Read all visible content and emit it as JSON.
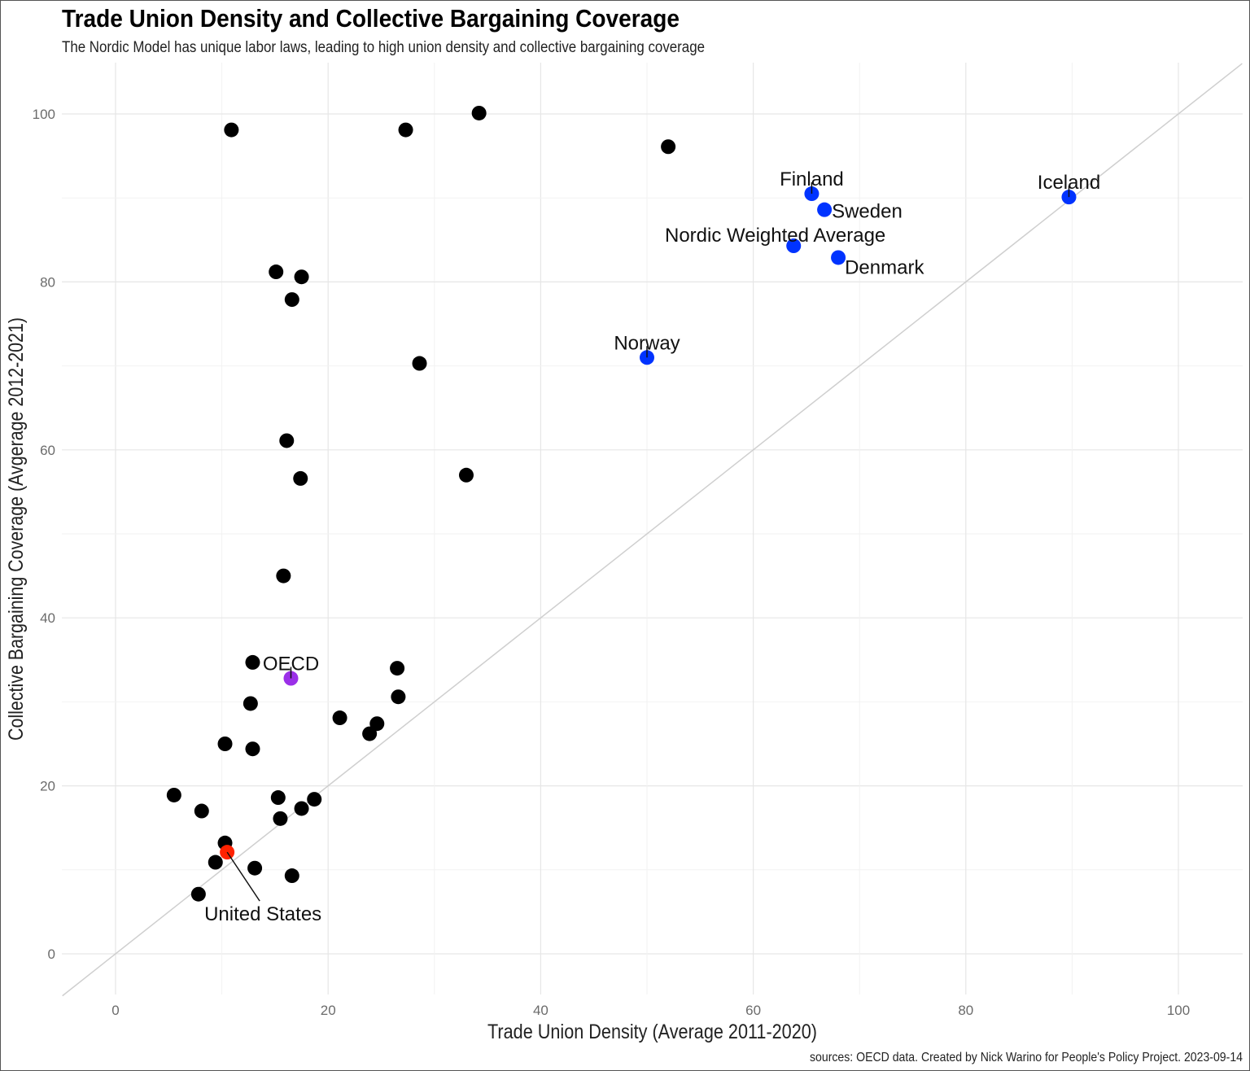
{
  "chart_data": {
    "type": "scatter",
    "title": "Trade Union Density and Collective Bargaining Coverage",
    "subtitle": "The Nordic Model has unique labor laws, leading to high union density and collective bargaining coverage",
    "xlabel": "Trade Union Density (Average 2011-2020)",
    "ylabel": "Collective Bargaining Coverage (Avgerage 2012-2021)",
    "caption": "sources: OECD data. Created by Nick Warino for People's Policy Project. 2023-09-14",
    "xlim": [
      -5,
      106
    ],
    "ylim": [
      -5,
      106
    ],
    "xticks": [
      0,
      20,
      40,
      60,
      80,
      100
    ],
    "yticks": [
      0,
      20,
      40,
      60,
      80,
      100
    ],
    "grid": true,
    "reference_line": "y = x",
    "colors": {
      "default": "#000000",
      "nordic": "#0033ff",
      "oecd": "#9b30e8",
      "us": "#ff2200",
      "reference": "#cfcfcf"
    },
    "points": [
      {
        "x": 10.9,
        "y": 98.1
      },
      {
        "x": 27.3,
        "y": 98.1
      },
      {
        "x": 34.2,
        "y": 100.1
      },
      {
        "x": 52.0,
        "y": 96.1
      },
      {
        "x": 15.1,
        "y": 81.2
      },
      {
        "x": 17.5,
        "y": 80.6
      },
      {
        "x": 16.6,
        "y": 77.9
      },
      {
        "x": 28.6,
        "y": 70.3
      },
      {
        "x": 16.1,
        "y": 61.1
      },
      {
        "x": 17.4,
        "y": 56.6
      },
      {
        "x": 33.0,
        "y": 57.0
      },
      {
        "x": 15.8,
        "y": 45.0
      },
      {
        "x": 12.9,
        "y": 34.7
      },
      {
        "x": 26.5,
        "y": 34.0
      },
      {
        "x": 12.7,
        "y": 29.8
      },
      {
        "x": 26.6,
        "y": 30.6
      },
      {
        "x": 21.1,
        "y": 28.1
      },
      {
        "x": 24.6,
        "y": 27.4
      },
      {
        "x": 23.9,
        "y": 26.2
      },
      {
        "x": 10.3,
        "y": 25.0
      },
      {
        "x": 12.9,
        "y": 24.4
      },
      {
        "x": 5.5,
        "y": 18.9
      },
      {
        "x": 8.1,
        "y": 17.0
      },
      {
        "x": 15.3,
        "y": 18.6
      },
      {
        "x": 18.7,
        "y": 18.4
      },
      {
        "x": 17.5,
        "y": 17.3
      },
      {
        "x": 15.5,
        "y": 16.1
      },
      {
        "x": 10.3,
        "y": 13.2
      },
      {
        "x": 9.4,
        "y": 10.9
      },
      {
        "x": 13.1,
        "y": 10.2
      },
      {
        "x": 16.6,
        "y": 9.3
      },
      {
        "x": 7.8,
        "y": 7.1
      },
      {
        "x": 10.5,
        "y": 12.1,
        "label": "United States",
        "group": "us"
      },
      {
        "x": 16.5,
        "y": 32.8,
        "label": "OECD",
        "group": "oecd"
      },
      {
        "x": 65.5,
        "y": 90.5,
        "label": "Finland",
        "group": "nordic"
      },
      {
        "x": 66.7,
        "y": 88.6,
        "label": "Sweden",
        "group": "nordic"
      },
      {
        "x": 63.8,
        "y": 84.3,
        "label": "Nordic Weighted Average",
        "group": "nordic"
      },
      {
        "x": 68.0,
        "y": 82.9,
        "label": "Denmark",
        "group": "nordic"
      },
      {
        "x": 50.0,
        "y": 71.0,
        "label": "Norway",
        "group": "nordic"
      },
      {
        "x": 89.7,
        "y": 90.1,
        "label": "Iceland",
        "group": "nordic"
      }
    ]
  }
}
